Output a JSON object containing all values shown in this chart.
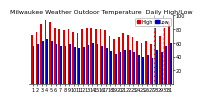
{
  "title": "Milwaukee Weather Outdoor Temperature  Daily High/Low",
  "bg_color": "#ffffff",
  "days": [
    1,
    2,
    3,
    4,
    5,
    6,
    7,
    8,
    9,
    10,
    11,
    12,
    13,
    14,
    15,
    16,
    17,
    18,
    19,
    20,
    21,
    22,
    23,
    24,
    25,
    26,
    27,
    28,
    29,
    30,
    31
  ],
  "highs": [
    72,
    75,
    88,
    93,
    90,
    82,
    80,
    78,
    80,
    76,
    74,
    80,
    82,
    82,
    80,
    80,
    78,
    70,
    65,
    68,
    74,
    72,
    68,
    62,
    60,
    62,
    58,
    82,
    70,
    82,
    90
  ],
  "lows": [
    55,
    58,
    62,
    66,
    63,
    59,
    56,
    56,
    58,
    54,
    52,
    54,
    57,
    60,
    58,
    55,
    52,
    48,
    44,
    46,
    50,
    50,
    46,
    42,
    40,
    42,
    38,
    50,
    46,
    55,
    60
  ],
  "high_color": "#dd0000",
  "low_color": "#0000cc",
  "ylim": [
    0,
    100
  ],
  "yticks": [
    20,
    40,
    60,
    80,
    100
  ],
  "ytick_labels": [
    "20",
    "40",
    "60",
    "80",
    "100"
  ],
  "tick_fontsize": 3.5,
  "title_fontsize": 4.5,
  "legend_fontsize": 3.5,
  "legend_high": "High",
  "legend_low": "Low",
  "vline_x": [
    26.5,
    28.5
  ],
  "vline_color": "#aaaaaa",
  "vline_style": "--",
  "bar_width": 0.38,
  "bar_gap": 0.0
}
